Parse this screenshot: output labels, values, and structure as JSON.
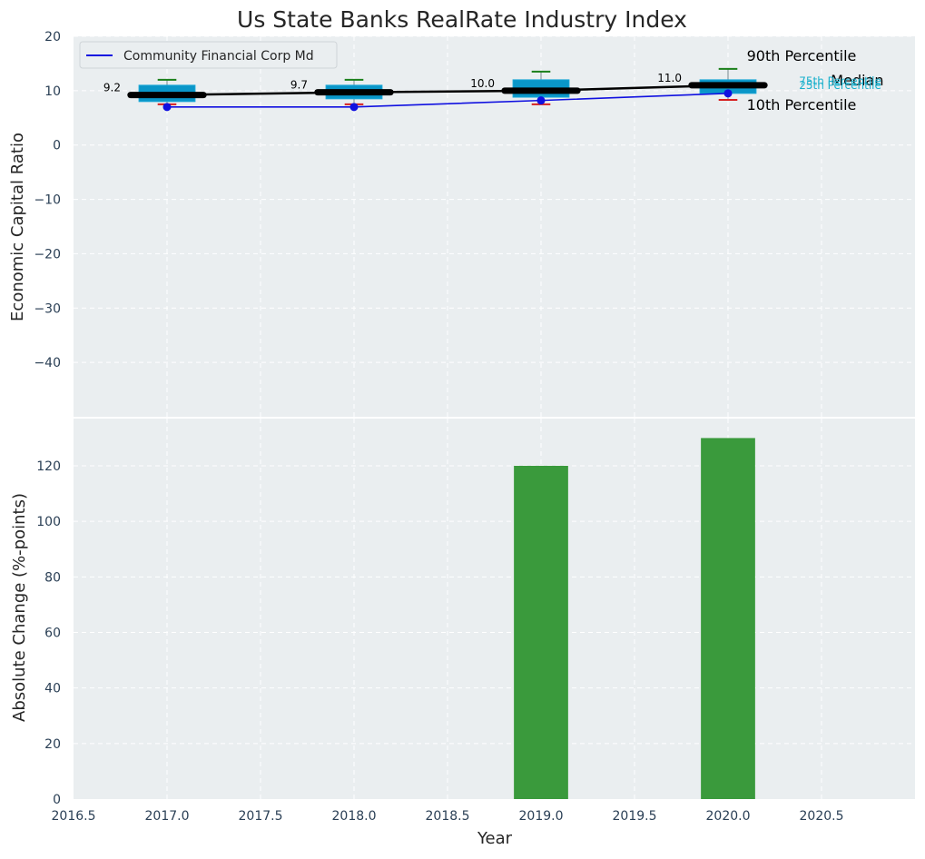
{
  "chart_data": [
    {
      "type": "boxplot",
      "title": "Us State Banks RealRate Industry Index",
      "xlabel": "",
      "ylabel": "Economic Capital Ratio",
      "xlim": [
        2016.5,
        2021.0
      ],
      "ylim": [
        -50,
        20
      ],
      "yticks": [
        20,
        10,
        0,
        -10,
        -20,
        -30,
        -40
      ],
      "ytick_labels": [
        "20",
        "10",
        "0",
        "−10",
        "−20",
        "−30",
        "−40"
      ],
      "grid": true,
      "legend": {
        "position": "top-left",
        "entries": [
          "Community Financial Corp Md"
        ]
      },
      "boxes": [
        {
          "x": 2017.0,
          "p10": 7.5,
          "p25": 8.0,
          "median": 9.2,
          "p75": 11.0,
          "p90": 12.0,
          "label": "9.2"
        },
        {
          "x": 2018.0,
          "p10": 7.5,
          "p25": 8.5,
          "median": 9.7,
          "p75": 11.0,
          "p90": 12.0,
          "label": "9.7"
        },
        {
          "x": 2019.0,
          "p10": 7.5,
          "p25": 8.8,
          "median": 10.0,
          "p75": 12.0,
          "p90": 13.5,
          "label": "10.0"
        },
        {
          "x": 2020.0,
          "p10": 8.3,
          "p25": 9.5,
          "median": 11.0,
          "p75": 12.0,
          "p90": 14.0,
          "label": "11.0"
        }
      ],
      "series": [
        {
          "name": "Community Financial Corp Md",
          "x": [
            2017.0,
            2018.0,
            2019.0,
            2020.0
          ],
          "values": [
            7.0,
            7.0,
            8.2,
            9.5
          ]
        },
        {
          "name": "Median",
          "x": [
            2017.0,
            2018.0,
            2019.0,
            2020.0
          ],
          "values": [
            9.2,
            9.7,
            10.0,
            11.0
          ]
        }
      ],
      "annotations": [
        {
          "text": "90th Percentile",
          "x": 2020.1,
          "y": 15.5
        },
        {
          "text": "Median",
          "x": 2020.55,
          "y": 11.0
        },
        {
          "text": "10th Percentile",
          "x": 2020.1,
          "y": 6.5
        },
        {
          "text": "75th Percentile",
          "x": 2020.38,
          "y": 11.1
        },
        {
          "text": "25th Percentile",
          "x": 2020.38,
          "y": 10.3
        }
      ]
    },
    {
      "type": "bar",
      "xlabel": "Year",
      "ylabel": "Absolute Change (%-points)",
      "xlim": [
        2016.5,
        2021.0
      ],
      "ylim": [
        0,
        137
      ],
      "xticks": [
        2016.5,
        2017.0,
        2017.5,
        2018.0,
        2018.5,
        2019.0,
        2019.5,
        2020.0,
        2020.5
      ],
      "xtick_labels": [
        "2016.5",
        "2017.0",
        "2017.5",
        "2018.0",
        "2018.5",
        "2019.0",
        "2019.5",
        "2020.0",
        "2020.5"
      ],
      "yticks": [
        0,
        20,
        40,
        60,
        80,
        100,
        120
      ],
      "ytick_labels": [
        "0",
        "20",
        "40",
        "60",
        "80",
        "100",
        "120"
      ],
      "grid": true,
      "bar_width": 0.29,
      "x": [
        2019.0,
        2020.0
      ],
      "values": [
        120,
        130
      ]
    }
  ],
  "colors": {
    "plot_bg": "#eaeef0",
    "box_fill": "#0a96c8",
    "box_edge": "#1aa7d6",
    "median": "#000000",
    "company": "#1010e0",
    "whisker_top": "#1a7f1a",
    "whisker_bottom": "#d62020",
    "bar": "#3a9a3c",
    "tick_text": "#2a3f55",
    "title_text": "#262626",
    "label_text": "#262626",
    "p75_p25_text": "#1ab0cc"
  }
}
